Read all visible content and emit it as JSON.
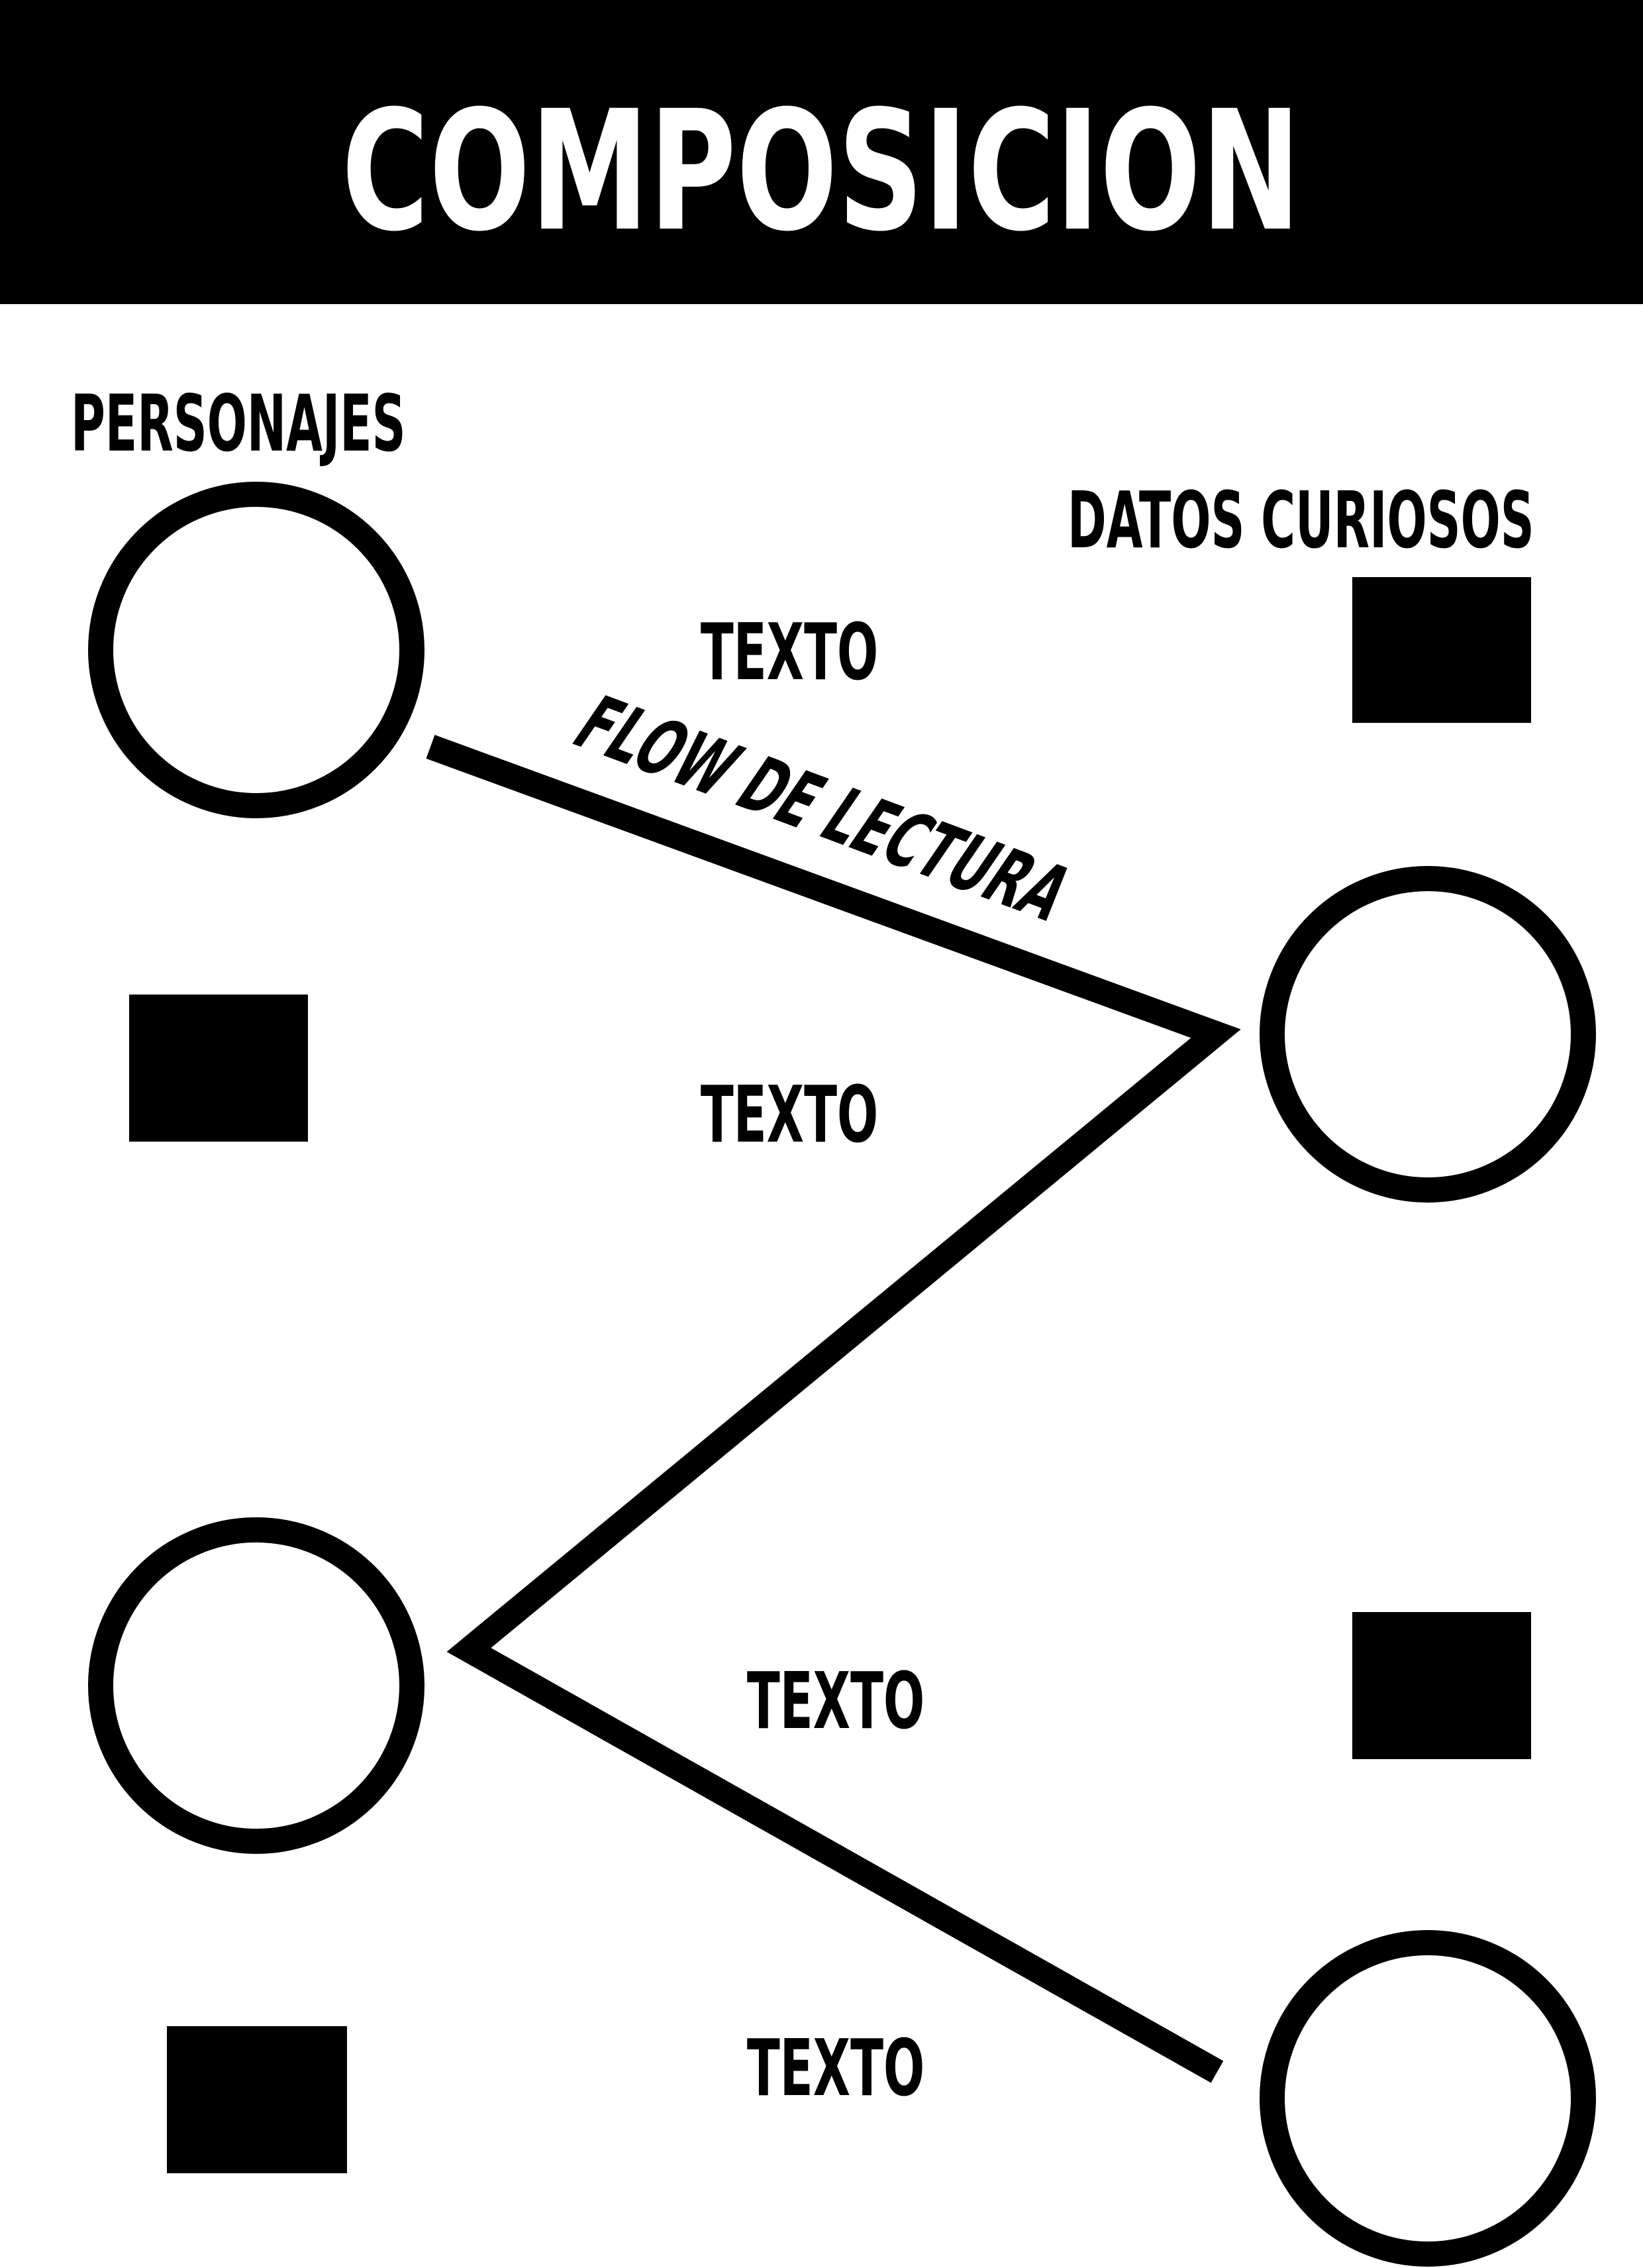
{
  "title": "COMPOSICION",
  "labels": {
    "personajes": "PERSONAJES",
    "datos_curiosos": "DATOS CURIOSOS",
    "flow": "FLOW DE LECTURA",
    "texto_1": "TEXTO",
    "texto_2": "TEXTO",
    "texto_3": "TEXTO",
    "texto_4": "TEXTO"
  },
  "colors": {
    "ink": "#000000",
    "paper": "#ffffff"
  }
}
